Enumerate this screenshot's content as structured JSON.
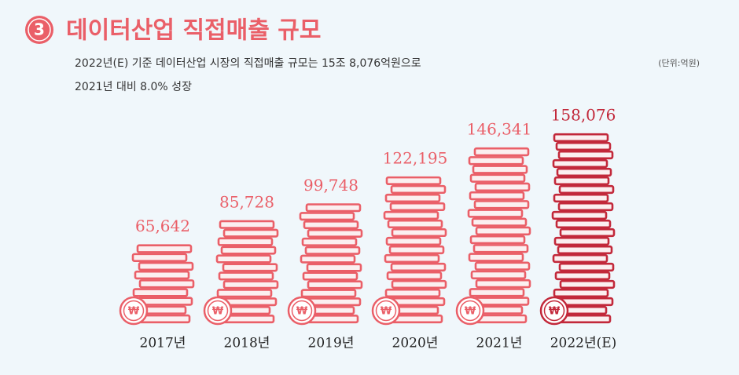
{
  "chart_data": {
    "type": "coin-stack",
    "badge": "3",
    "title": "데이터산업 직접매출 규모",
    "subtitle_lines": [
      "2022년(E) 기준 데이터산업 시장의 직접매출 규모는 15조 8,076억원으로",
      "2021년 대비 8.0%  성장"
    ],
    "unit": "(단위:억원)",
    "currency_symbol": "₩",
    "categories": [
      "2017년",
      "2018년",
      "2019년",
      "2020년",
      "2021년",
      "2022년(E)"
    ],
    "values": [
      65642,
      85728,
      99748,
      122195,
      146341,
      158076
    ],
    "value_labels": [
      "65,642",
      "85,728",
      "99,748",
      "122,195",
      "146,341",
      "158,076"
    ],
    "colors": [
      "#ea5f68",
      "#ea5f68",
      "#ea5f68",
      "#ea5f68",
      "#ea5f68",
      "#c2283a"
    ]
  }
}
